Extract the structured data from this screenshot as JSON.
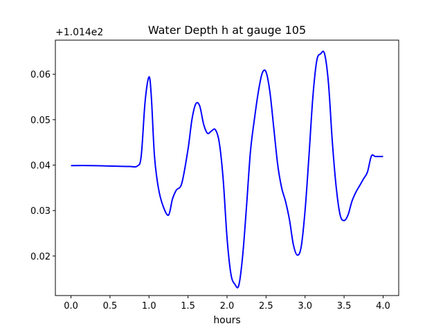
{
  "chart_data": {
    "type": "line",
    "title": "Water Depth h at gauge 105",
    "xlabel": "hours",
    "ylabel": "",
    "offset_label": "+1.014e2",
    "xlim": [
      -0.2,
      4.2
    ],
    "ylim": [
      0.0113,
      0.0675
    ],
    "x_ticks": [
      0.0,
      0.5,
      1.0,
      1.5,
      2.0,
      2.5,
      3.0,
      3.5,
      4.0
    ],
    "x_tick_labels": [
      "0.0",
      "0.5",
      "1.0",
      "1.5",
      "2.0",
      "2.5",
      "3.0",
      "3.5",
      "4.0"
    ],
    "y_ticks": [
      0.02,
      0.03,
      0.04,
      0.05,
      0.06
    ],
    "y_tick_labels": [
      "0.02",
      "0.03",
      "0.04",
      "0.05",
      "0.06"
    ],
    "grid": false,
    "series": [
      {
        "color": "#0000ff",
        "x": [
          0.0,
          0.25,
          0.5,
          0.75,
          0.85,
          0.9,
          0.95,
          1.0,
          1.03,
          1.07,
          1.12,
          1.18,
          1.25,
          1.3,
          1.35,
          1.42,
          1.5,
          1.55,
          1.6,
          1.65,
          1.7,
          1.75,
          1.8,
          1.85,
          1.9,
          1.95,
          2.0,
          2.05,
          2.1,
          2.15,
          2.2,
          2.25,
          2.3,
          2.35,
          2.4,
          2.45,
          2.5,
          2.55,
          2.6,
          2.65,
          2.7,
          2.75,
          2.8,
          2.85,
          2.9,
          2.95,
          3.0,
          3.05,
          3.1,
          3.15,
          3.2,
          3.25,
          3.3,
          3.35,
          3.4,
          3.45,
          3.5,
          3.55,
          3.6,
          3.65,
          3.7,
          3.75,
          3.8,
          3.85,
          3.9,
          3.95,
          4.0
        ],
        "y": [
          0.0399,
          0.0399,
          0.0398,
          0.0397,
          0.0398,
          0.042,
          0.054,
          0.0594,
          0.055,
          0.042,
          0.035,
          0.031,
          0.029,
          0.0325,
          0.0345,
          0.036,
          0.0435,
          0.05,
          0.0535,
          0.053,
          0.049,
          0.047,
          0.0475,
          0.0478,
          0.045,
          0.037,
          0.024,
          0.016,
          0.0138,
          0.0135,
          0.02,
          0.031,
          0.043,
          0.05,
          0.056,
          0.0602,
          0.0605,
          0.056,
          0.048,
          0.04,
          0.035,
          0.032,
          0.028,
          0.0225,
          0.0202,
          0.022,
          0.03,
          0.042,
          0.055,
          0.063,
          0.0645,
          0.0645,
          0.058,
          0.045,
          0.035,
          0.029,
          0.0278,
          0.029,
          0.032,
          0.034,
          0.0355,
          0.037,
          0.0385,
          0.042,
          0.0419,
          0.0419,
          0.0419
        ]
      }
    ]
  }
}
